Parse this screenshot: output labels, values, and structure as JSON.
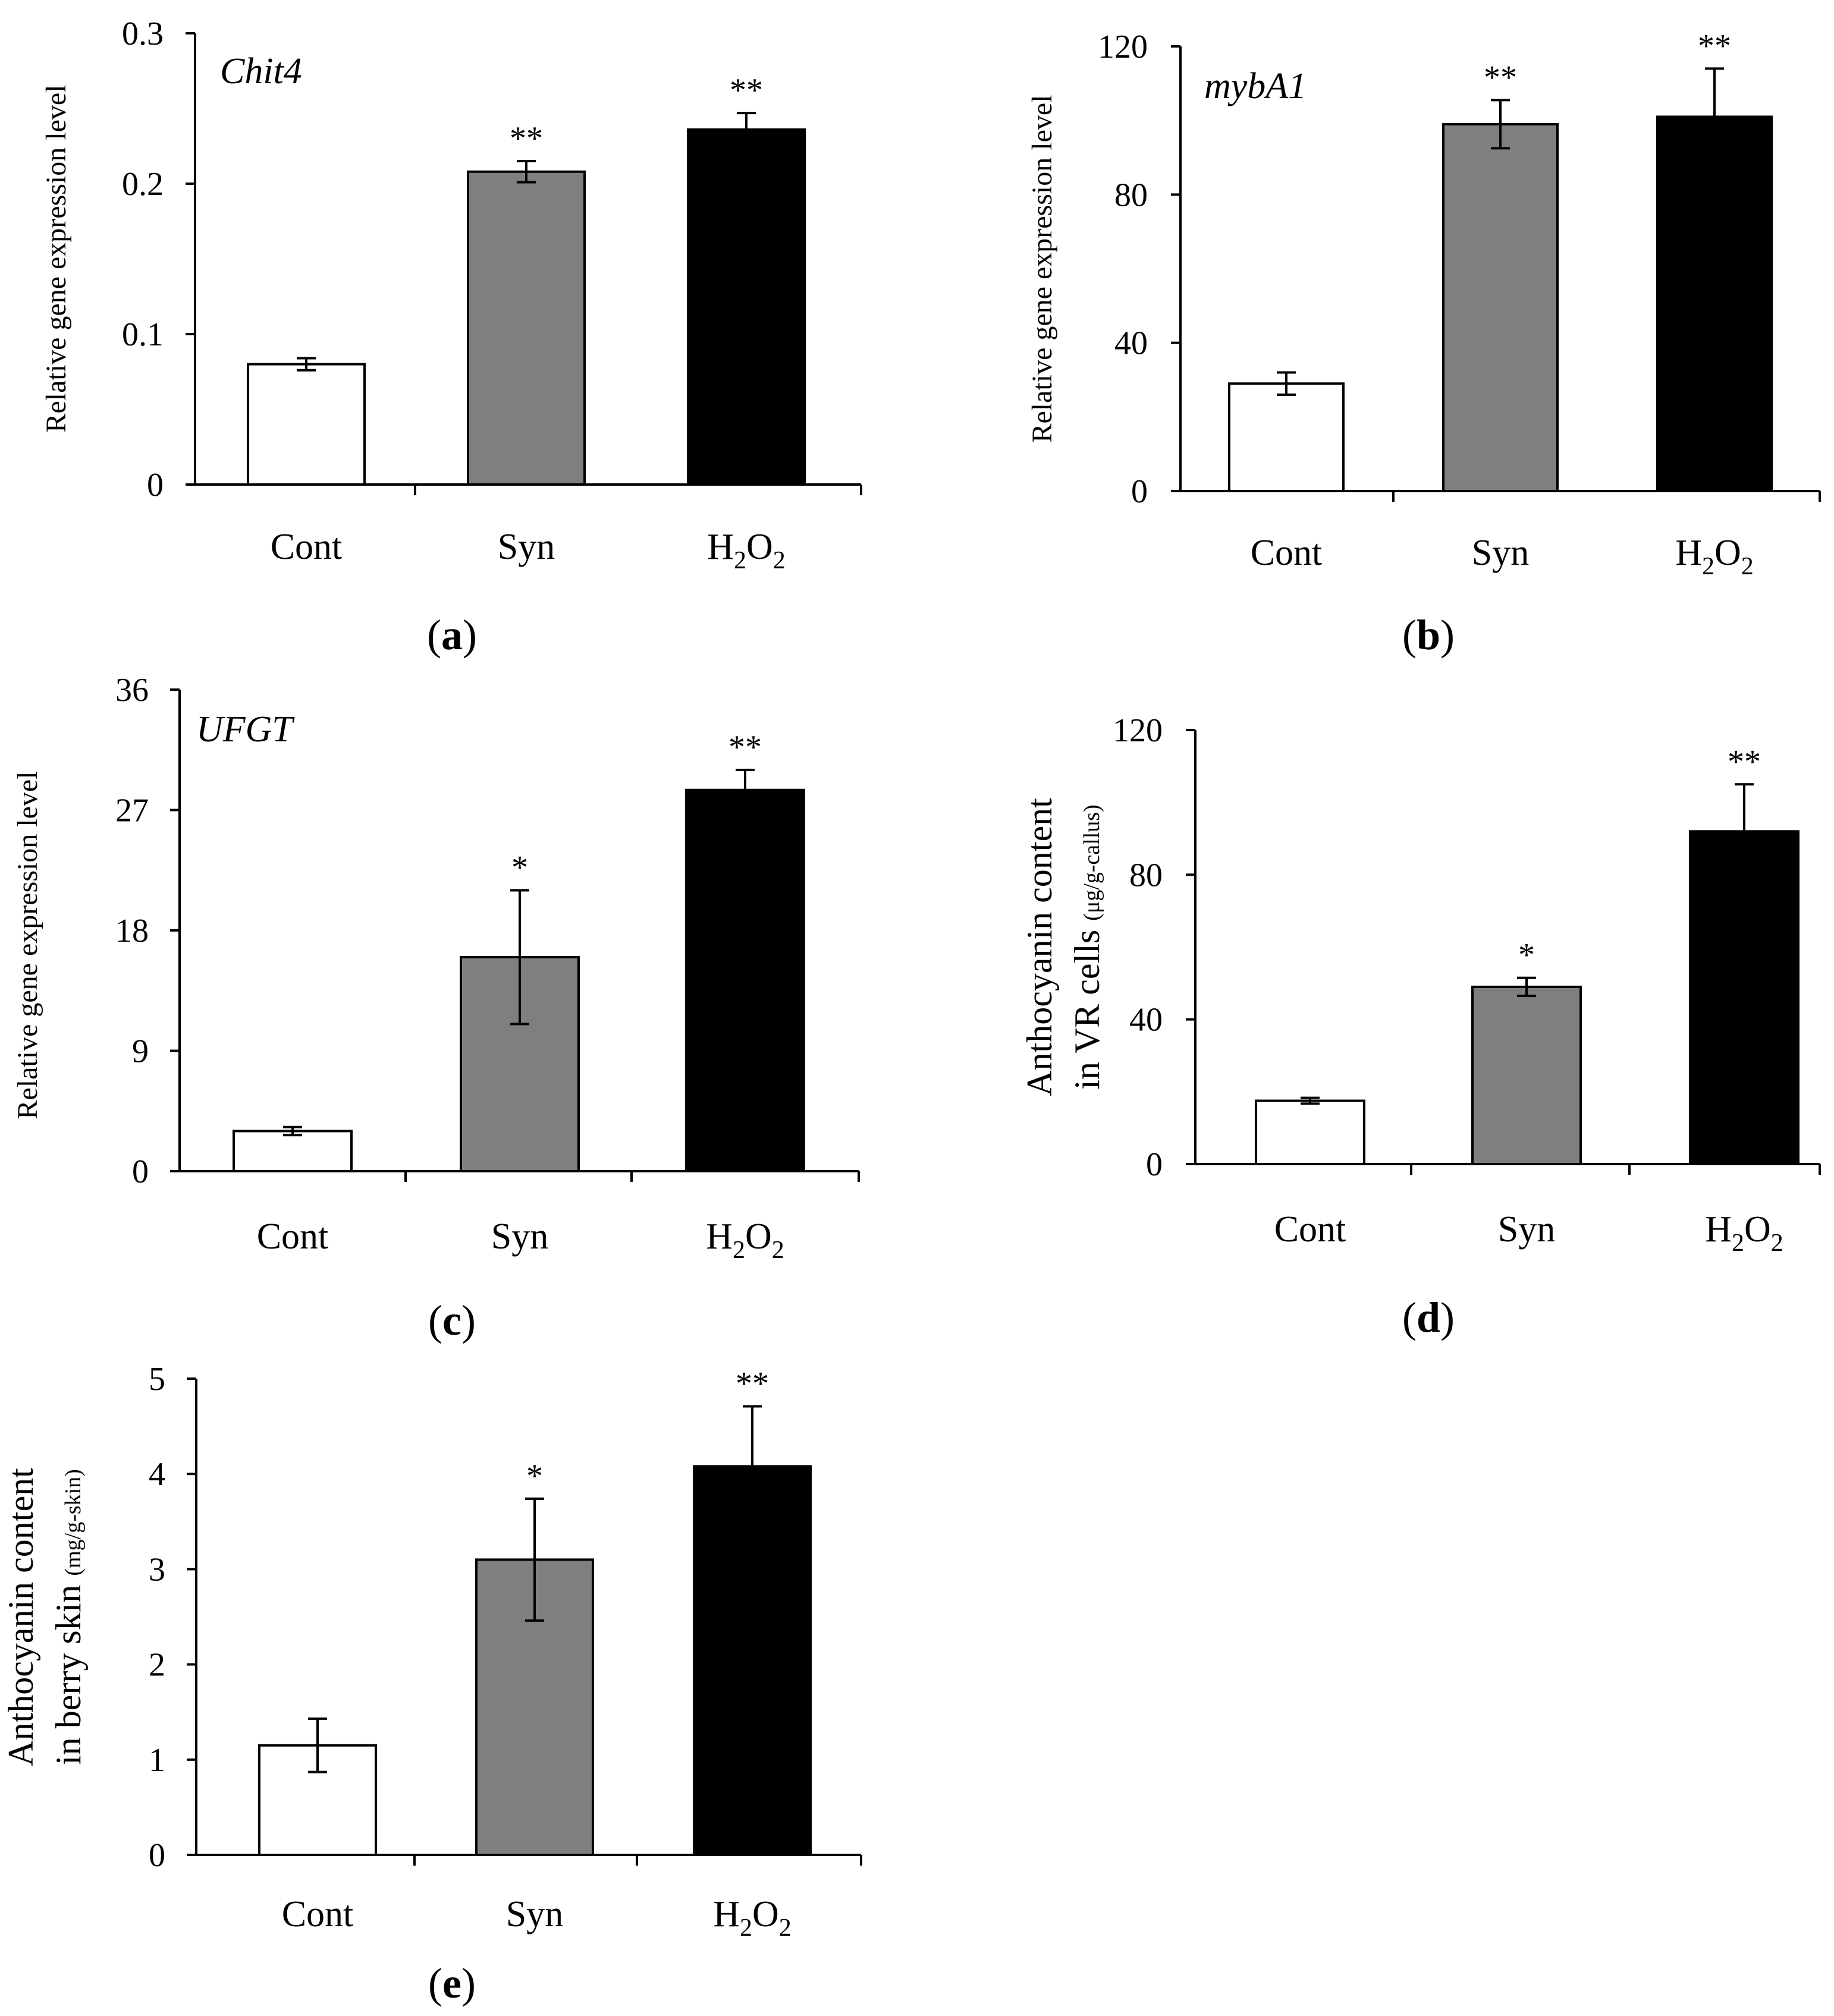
{
  "colors": {
    "Cont": "#ffffff",
    "Syn": "#7f7f7f",
    "H2O2": "#000000"
  },
  "chart_data": [
    {
      "panel": "a",
      "type": "bar",
      "gene_label": "Chit4",
      "ylabel": "Relative gene expression level",
      "ylabel_unit": "",
      "categories": [
        "Cont",
        "Syn",
        "H2O2"
      ],
      "values": [
        0.08,
        0.208,
        0.236
      ],
      "errors": [
        0.004,
        0.007,
        0.011
      ],
      "significance": [
        "",
        "**",
        "**"
      ],
      "ylim": [
        0,
        0.3
      ],
      "yticks": [
        0,
        0.1,
        0.2,
        0.3
      ],
      "ytick_labels": [
        "0",
        "0.1",
        "0.2",
        "0.3"
      ]
    },
    {
      "panel": "b",
      "type": "bar",
      "gene_label": "mybA1",
      "ylabel": "Relative gene expression level",
      "ylabel_unit": "",
      "categories": [
        "Cont",
        "Syn",
        "H2O2"
      ],
      "values": [
        29,
        99,
        101
      ],
      "errors": [
        3,
        6.5,
        13
      ],
      "significance": [
        "",
        "**",
        "**"
      ],
      "ylim": [
        0,
        120
      ],
      "yticks": [
        0,
        40,
        80,
        120
      ],
      "ytick_labels": [
        "0",
        "40",
        "80",
        "120"
      ]
    },
    {
      "panel": "c",
      "type": "bar",
      "gene_label": "UFGT",
      "ylabel": "Relative gene expression level",
      "ylabel_unit": "",
      "categories": [
        "Cont",
        "Syn",
        "H2O2"
      ],
      "values": [
        3,
        16,
        28.5
      ],
      "errors": [
        0.3,
        5,
        1.5
      ],
      "significance": [
        "",
        "*",
        "**"
      ],
      "ylim": [
        0,
        36
      ],
      "yticks": [
        0,
        9,
        18,
        27,
        36
      ],
      "ytick_labels": [
        "0",
        "9",
        "18",
        "27",
        "36"
      ]
    },
    {
      "panel": "d",
      "type": "bar",
      "gene_label": "",
      "ylabel": "Anthocyanin content",
      "ylabel2": "in VR cells",
      "ylabel_unit": "(μg/g-callus)",
      "categories": [
        "Cont",
        "Syn",
        "H2O2"
      ],
      "values": [
        17.5,
        49,
        92
      ],
      "errors": [
        0.8,
        2.5,
        13
      ],
      "significance": [
        "",
        "*",
        "**"
      ],
      "ylim": [
        0,
        120
      ],
      "yticks": [
        0,
        40,
        80,
        120
      ],
      "ytick_labels": [
        "0",
        "40",
        "80",
        "120"
      ]
    },
    {
      "panel": "e",
      "type": "bar",
      "gene_label": "",
      "ylabel": "Anthocyanin content",
      "ylabel2": "in berry skin",
      "ylabel_unit": "(mg/g-skin)",
      "categories": [
        "Cont",
        "Syn",
        "H2O2"
      ],
      "values": [
        1.15,
        3.1,
        4.08
      ],
      "errors": [
        0.28,
        0.64,
        0.63
      ],
      "significance": [
        "",
        "*",
        "**"
      ],
      "ylim": [
        0,
        5
      ],
      "yticks": [
        0,
        1,
        2,
        3,
        4,
        5
      ],
      "ytick_labels": [
        "0",
        "1",
        "2",
        "3",
        "4",
        "5"
      ]
    }
  ]
}
